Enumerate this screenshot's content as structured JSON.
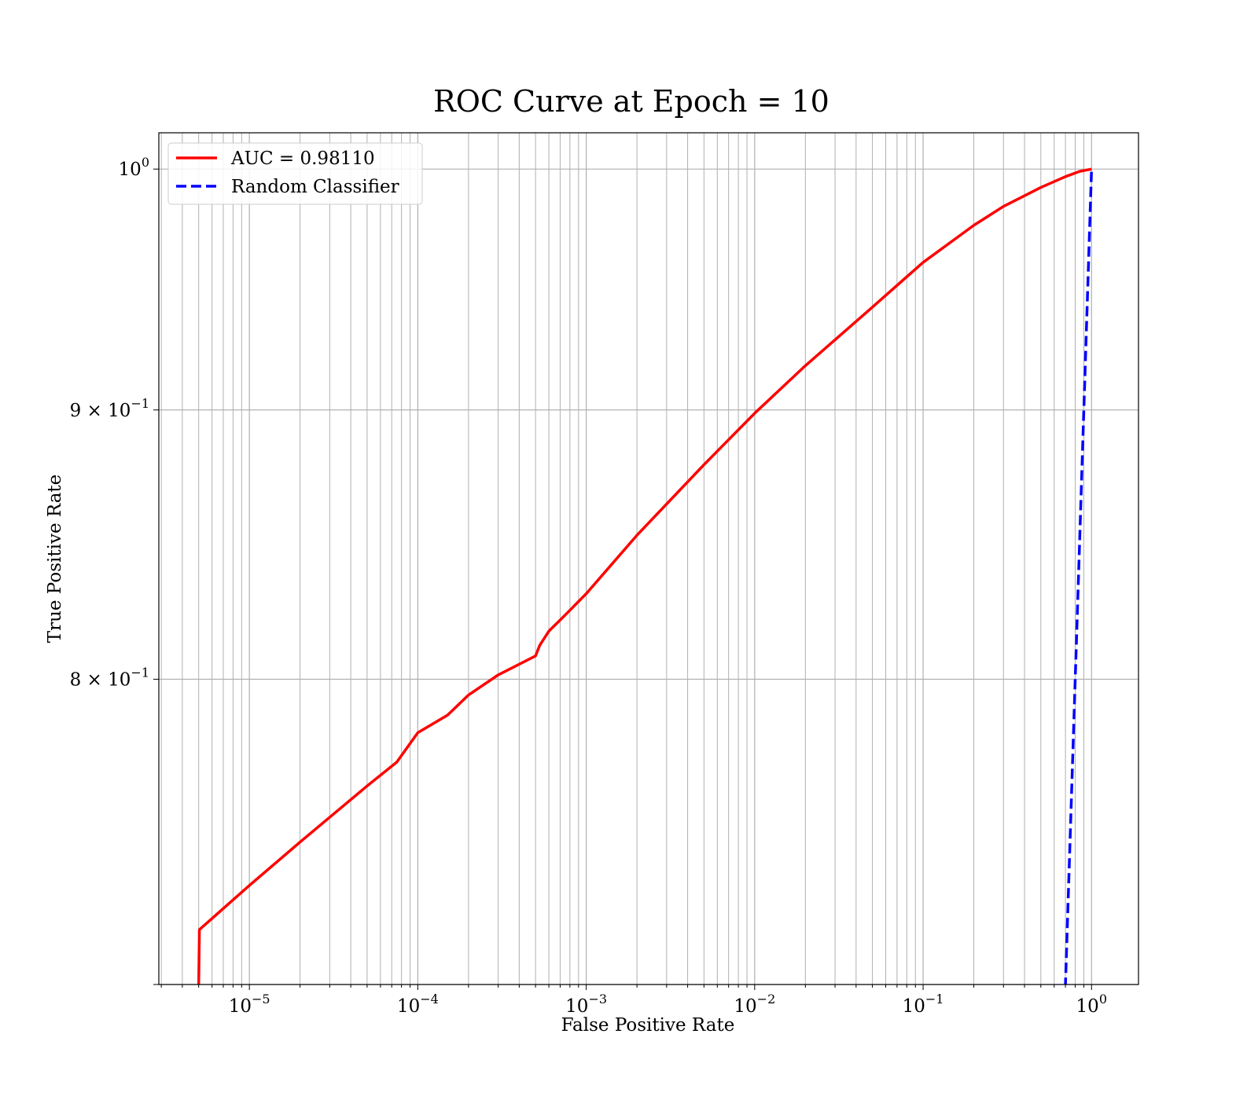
{
  "chart_data": {
    "type": "line",
    "title": "ROC Curve at Epoch = 10",
    "xlabel": "False Positive Rate",
    "ylabel": "True Positive Rate",
    "xscale": "log",
    "yscale": "log",
    "xlim": [
      2.9e-06,
      1.9
    ],
    "ylim": [
      0.7,
      1.016
    ],
    "grid": "both, major and minor",
    "legend_position": "upper-left",
    "x_ticks": [
      {
        "base": "10",
        "exp": "−5",
        "value": 1e-05
      },
      {
        "base": "10",
        "exp": "−4",
        "value": 0.0001
      },
      {
        "base": "10",
        "exp": "−3",
        "value": 0.001
      },
      {
        "base": "10",
        "exp": "−2",
        "value": 0.01
      },
      {
        "base": "10",
        "exp": "−1",
        "value": 0.1
      },
      {
        "base": "10",
        "exp": "0",
        "value": 1
      }
    ],
    "y_ticks": [
      {
        "mant": "",
        "base": "10",
        "exp": "0",
        "value": 1.0
      },
      {
        "mant": "9 × ",
        "base": "10",
        "exp": "−1",
        "value": 0.9
      },
      {
        "mant": "8 × ",
        "base": "10",
        "exp": "−1",
        "value": 0.8
      }
    ],
    "series": [
      {
        "name": "AUC = 0.98110",
        "color": "#ff0000",
        "style": "solid",
        "x": [
          5e-06,
          5.05e-06,
          1e-05,
          2e-05,
          5e-05,
          7.5e-05,
          0.0001,
          0.00015,
          0.0002,
          0.0003,
          0.0005,
          0.00053,
          0.0006,
          0.0007,
          0.0008,
          0.001,
          0.002,
          0.005,
          0.01,
          0.02,
          0.05,
          0.1,
          0.2,
          0.3,
          0.5,
          0.7,
          0.85,
          1.0
        ],
        "y": [
          0.699,
          0.717,
          0.731,
          0.745,
          0.7635,
          0.7715,
          0.7815,
          0.7875,
          0.7945,
          0.8015,
          0.8082,
          0.812,
          0.817,
          0.821,
          0.8245,
          0.8305,
          0.852,
          0.8787,
          0.8987,
          0.9176,
          0.9414,
          0.96,
          0.9757,
          0.9838,
          0.992,
          0.9967,
          0.999,
          1.0
        ]
      },
      {
        "name": "Random Classifier",
        "color": "#0000ff",
        "style": "dashed",
        "x": [
          0.699,
          1.0
        ],
        "y": [
          0.699,
          1.0
        ]
      }
    ]
  }
}
